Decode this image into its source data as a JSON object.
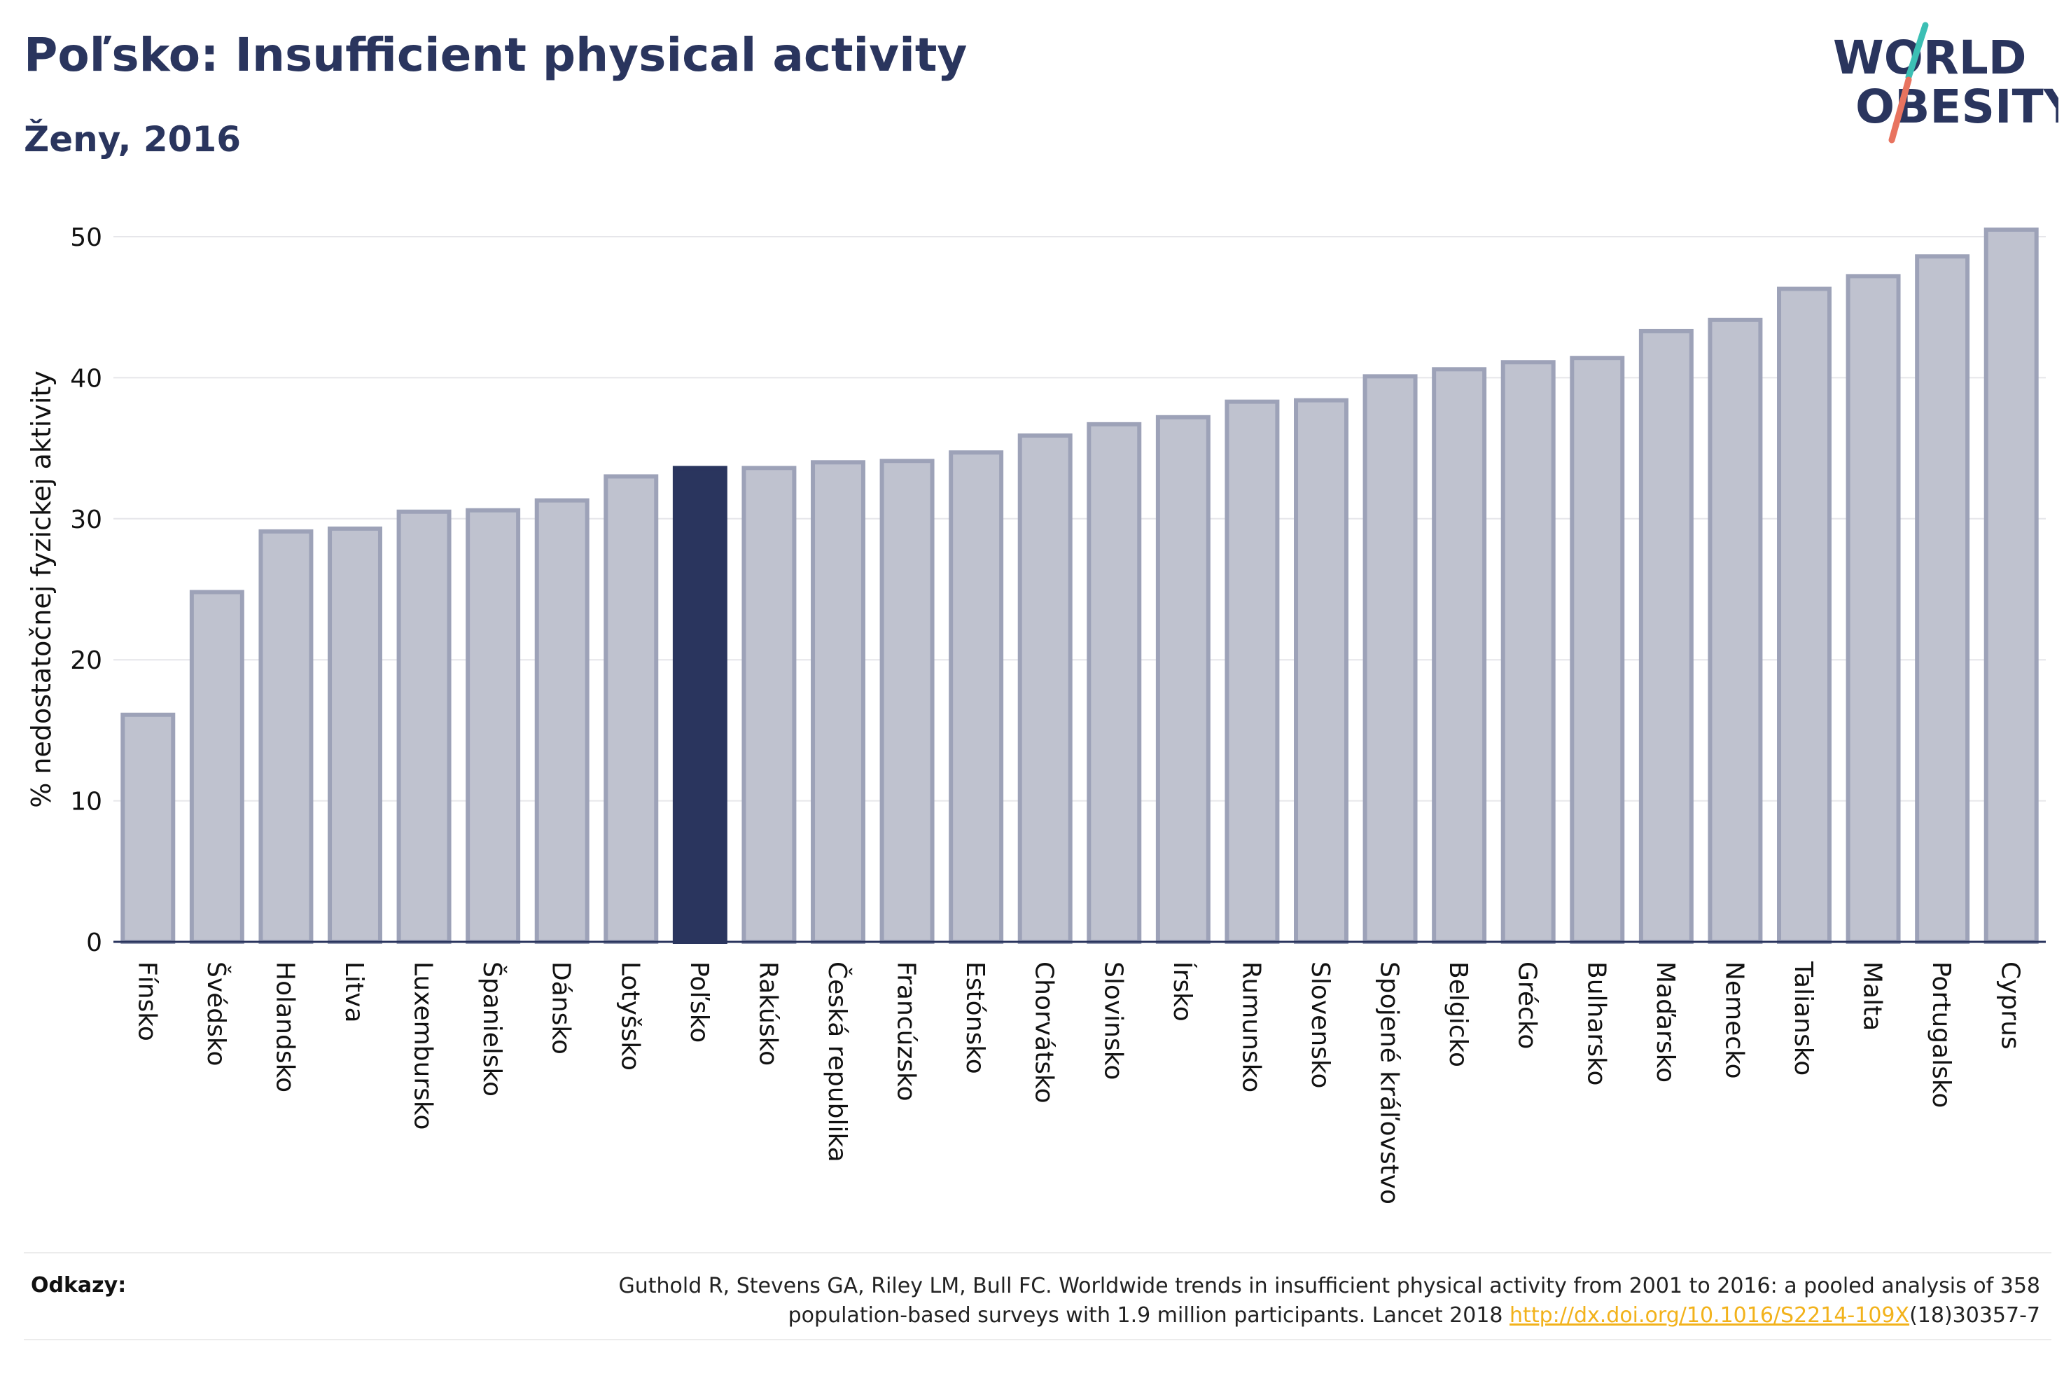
{
  "header": {
    "title": "Poľsko: Insufficient physical activity",
    "subtitle": "Ženy, 2016"
  },
  "logo": {
    "line1": "WORLD",
    "line2": "OBESITY"
  },
  "colors": {
    "bar": "#bfc2cf",
    "bar_stroke": "#9da2b8",
    "highlight": "#2a355e",
    "text": "#2a355e",
    "logo_teal": "#3cbfb4",
    "logo_coral": "#e8735f",
    "link": "#f2b21b"
  },
  "chart_data": {
    "type": "bar",
    "title": "Poľsko: Insufficient physical activity",
    "subtitle": "Ženy, 2016",
    "ylabel": "% nedostatočnej fyzickej aktivity",
    "xlabel": "",
    "ylim": [
      0,
      52
    ],
    "yticks": [
      0,
      10,
      20,
      30,
      40,
      50
    ],
    "grid": true,
    "highlight": "Poľsko",
    "categories": [
      "Fínsko",
      "Švédsko",
      "Holandsko",
      "Litva",
      "Luxembursko",
      "Španielsko",
      "Dánsko",
      "Lotyšsko",
      "Poľsko",
      "Rakúsko",
      "Česká republika",
      "Francúzsko",
      "Estónsko",
      "Chorvátsko",
      "Slovinsko",
      "Írsko",
      "Rumunsko",
      "Slovensko",
      "Spojené kráľovstvo",
      "Belgicko",
      "Grécko",
      "Bulharsko",
      "Maďarsko",
      "Nemecko",
      "Taliansko",
      "Malta",
      "Portugalsko",
      "Cyprus"
    ],
    "values": [
      16.1,
      24.8,
      29.1,
      29.3,
      30.5,
      30.6,
      31.3,
      33.0,
      33.6,
      33.6,
      34.0,
      34.1,
      34.7,
      35.9,
      36.7,
      37.2,
      38.3,
      38.4,
      40.1,
      40.6,
      41.1,
      41.4,
      43.3,
      44.1,
      46.3,
      47.2,
      48.6,
      50.5
    ]
  },
  "footer": {
    "label": "Odkazy:",
    "ref_line1": "Guthold R, Stevens GA, Riley LM, Bull FC. Worldwide trends in insufficient physical activity from 2001 to 2016: a pooled analysis of 358",
    "ref_line2_pre": "population-based surveys with 1.9 million participants. Lancet 2018 ",
    "ref_link": "http://dx.doi.org/10.1016/S2214-109X",
    "ref_line2_post": "(18)30357-7"
  }
}
